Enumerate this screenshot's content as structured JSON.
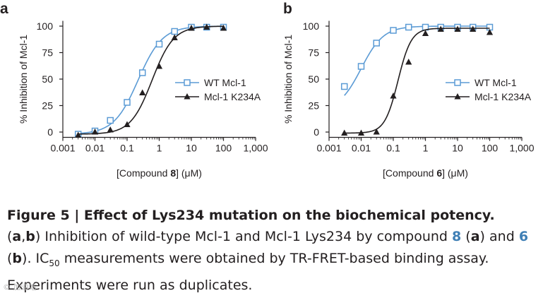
{
  "chart_data": [
    {
      "panel": "a",
      "type": "scatter",
      "xscale": "log",
      "xlim": [
        0.001,
        1000
      ],
      "ylim": [
        -5,
        105
      ],
      "xticks": [
        0.001,
        0.01,
        0.1,
        1,
        10,
        100,
        1000
      ],
      "xtick_labels": [
        "0.001",
        "0.01",
        "0.1",
        "1",
        "10",
        "100",
        "1,000"
      ],
      "yticks": [
        0,
        25,
        50,
        75,
        100
      ],
      "ytick_labels": [
        "0",
        "25",
        "50",
        "75",
        "100"
      ],
      "ylabel": "% Inhibition of Mcl-1",
      "xlabel_pre": "[Compound ",
      "xlabel_num": "8",
      "xlabel_post": "] (μM)",
      "legend_position": "right-middle",
      "series": [
        {
          "name": "WT Mcl-1",
          "marker": "open-square",
          "color": "#5b9bd5",
          "x": [
            0.003,
            0.01,
            0.03,
            0.1,
            0.3,
            1,
            3,
            10,
            30,
            100
          ],
          "y": [
            -2,
            1,
            11,
            28,
            56,
            83,
            95,
            99,
            99,
            99
          ],
          "fit": {
            "bottom": -2,
            "top": 100,
            "ec50": 0.22,
            "hill": 1.15
          }
        },
        {
          "name": "Mcl-1 K234A",
          "marker": "filled-triangle",
          "color": "#231f20",
          "x": [
            0.003,
            0.01,
            0.03,
            0.1,
            0.3,
            1,
            3,
            10,
            30,
            100
          ],
          "y": [
            -3,
            0,
            2,
            7,
            37,
            62,
            89,
            98,
            99,
            98
          ],
          "fit": {
            "bottom": -2,
            "top": 100,
            "ec50": 0.6,
            "hill": 1.3
          }
        }
      ]
    },
    {
      "panel": "b",
      "type": "scatter",
      "xscale": "log",
      "xlim": [
        0.001,
        1000
      ],
      "ylim": [
        -5,
        105
      ],
      "xticks": [
        0.001,
        0.01,
        0.1,
        1,
        10,
        100,
        1000
      ],
      "xtick_labels": [
        "0.001",
        "0.01",
        "0.1",
        "1",
        "10",
        "100",
        "1,000"
      ],
      "yticks": [
        0,
        25,
        50,
        75,
        100
      ],
      "ytick_labels": [
        "0",
        "25",
        "50",
        "75",
        "100"
      ],
      "ylabel": "% Inhibition of Mcl-1",
      "xlabel_pre": "[Compound ",
      "xlabel_num": "6",
      "xlabel_post": "] (μM)",
      "legend_position": "right-middle",
      "series": [
        {
          "name": "WT Mcl-1",
          "marker": "open-square",
          "color": "#5b9bd5",
          "x": [
            0.003,
            0.01,
            0.03,
            0.1,
            0.3,
            1,
            3,
            10,
            30,
            100
          ],
          "y": [
            43,
            62,
            84,
            96,
            99,
            99,
            99,
            99,
            99,
            99
          ],
          "fit": {
            "bottom": 20,
            "top": 100,
            "ec50": 0.01,
            "hill": 1.25
          }
        },
        {
          "name": "Mcl-1 K234A",
          "marker": "filled-triangle",
          "color": "#231f20",
          "x": [
            0.003,
            0.01,
            0.03,
            0.1,
            0.3,
            1,
            3,
            10,
            30,
            100
          ],
          "y": [
            -1,
            -1,
            0,
            34,
            66,
            93,
            97,
            97,
            97,
            94
          ],
          "fit": {
            "bottom": -1,
            "top": 98,
            "ec50": 0.14,
            "hill": 2.1
          }
        }
      ]
    }
  ],
  "caption": {
    "title": "Figure 5 | Effect of Lys234 mutation on the biochemical potency.",
    "paren_open": "(",
    "a": "a",
    "comma": ",",
    "b": "b",
    "l1_rest": ") Inhibition of wild-type Mcl-1 and Mcl-1 Lys234 by compound ",
    "cmpd8": "8",
    "paren_a_open": " (",
    "paren_a_close": ")",
    "and": "and ",
    "cmpd6": "6",
    "paren_b_open": " (",
    "paren_b_close": "). ",
    "ic": "IC",
    "ic_sub": "50",
    "l2_rest": " measurements were obtained by TR-FRET-based binding assay. Experiments were run as duplicates."
  },
  "watermark": "© 加油站"
}
